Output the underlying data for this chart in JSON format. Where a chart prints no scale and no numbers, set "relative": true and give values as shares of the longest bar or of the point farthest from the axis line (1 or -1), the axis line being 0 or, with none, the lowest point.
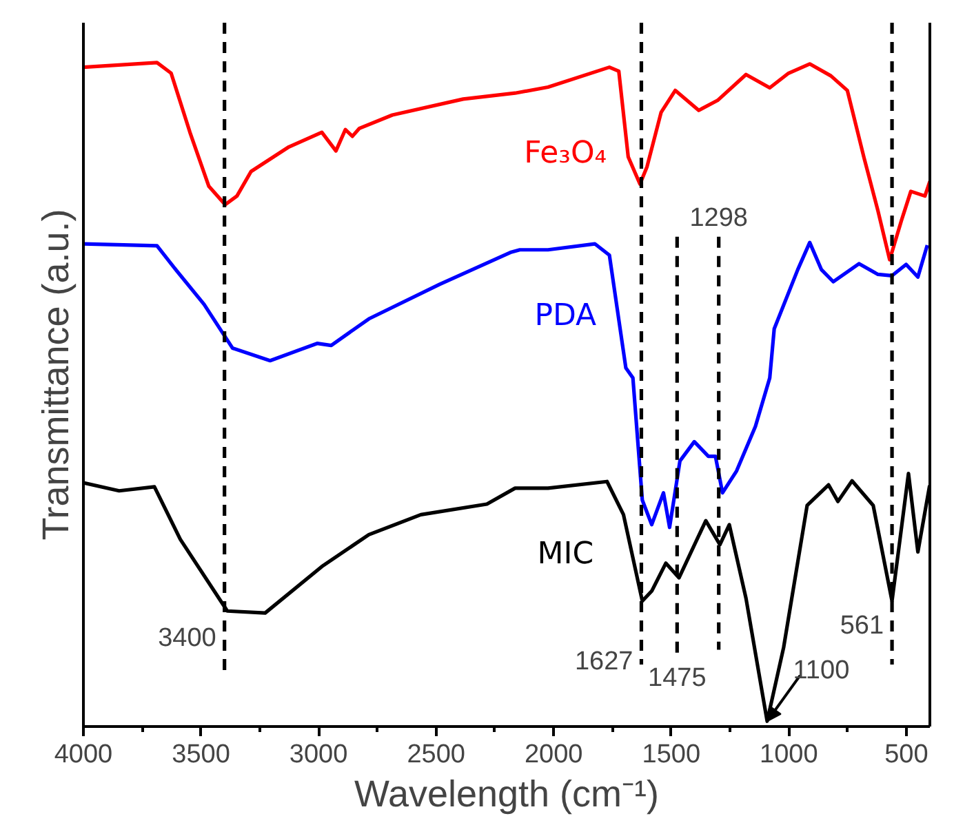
{
  "chart_data": {
    "type": "line",
    "relative": true,
    "xlabel": "Wavelength (cm⁻¹)",
    "ylabel": "Transmittance (a.u.)",
    "xlim": [
      4000,
      400
    ],
    "xticks": [
      4000,
      3500,
      3000,
      2500,
      2000,
      1500,
      1000,
      500
    ],
    "grid": false,
    "line_style": "solid",
    "marker": "none",
    "series": [
      {
        "name": "Fe₃O₄",
        "color": "#ff0000",
        "x": [
          4000,
          3687,
          3627,
          3547,
          3467,
          3397,
          3347,
          3287,
          3126,
          2986,
          2926,
          2886,
          2856,
          2826,
          2686,
          2385,
          2164,
          2024,
          1763,
          1723,
          1683,
          1633,
          1603,
          1543,
          1483,
          1383,
          1303,
          1182,
          1081,
          1001,
          911,
          821,
          751,
          681,
          621,
          571,
          521,
          481,
          421,
          400
        ],
        "values": [
          0.993,
          1.0,
          0.984,
          0.895,
          0.814,
          0.786,
          0.799,
          0.836,
          0.873,
          0.895,
          0.867,
          0.899,
          0.889,
          0.901,
          0.921,
          0.945,
          0.954,
          0.963,
          0.993,
          0.987,
          0.858,
          0.817,
          0.843,
          0.925,
          0.958,
          0.928,
          0.943,
          0.982,
          0.962,
          0.984,
          0.998,
          0.98,
          0.958,
          0.858,
          0.777,
          0.703,
          0.762,
          0.806,
          0.799,
          0.821
        ]
      },
      {
        "name": "PDA",
        "color": "#0000ff",
        "x": [
          4000,
          3687,
          3607,
          3487,
          3366,
          3206,
          3006,
          2946,
          2786,
          2485,
          2184,
          2144,
          2024,
          1825,
          1763,
          1693,
          1663,
          1623,
          1583,
          1533,
          1507,
          1463,
          1402,
          1342,
          1312,
          1282,
          1222,
          1142,
          1081,
          1062,
          962,
          911,
          861,
          811,
          701,
          621,
          561,
          501,
          451,
          411
        ],
        "values": [
          0.727,
          0.724,
          0.688,
          0.636,
          0.57,
          0.551,
          0.577,
          0.574,
          0.614,
          0.666,
          0.714,
          0.718,
          0.718,
          0.727,
          0.71,
          0.54,
          0.525,
          0.341,
          0.304,
          0.352,
          0.3,
          0.4,
          0.429,
          0.407,
          0.407,
          0.352,
          0.385,
          0.452,
          0.525,
          0.599,
          0.688,
          0.729,
          0.688,
          0.67,
          0.697,
          0.681,
          0.679,
          0.696,
          0.677,
          0.725
        ]
      },
      {
        "name": "MIC",
        "color": "#000000",
        "x": [
          4000,
          3848,
          3698,
          3588,
          3388,
          3227,
          2986,
          2786,
          2565,
          2284,
          2164,
          2144,
          2024,
          1773,
          1703,
          1623,
          1583,
          1523,
          1467,
          1353,
          1293,
          1253,
          1182,
          1092,
          1022,
          922,
          831,
          791,
          731,
          641,
          561,
          491,
          451,
          401
        ],
        "values": [
          0.367,
          0.355,
          0.361,
          0.282,
          0.174,
          0.171,
          0.241,
          0.289,
          0.319,
          0.335,
          0.359,
          0.359,
          0.359,
          0.369,
          0.319,
          0.189,
          0.204,
          0.246,
          0.224,
          0.31,
          0.274,
          0.304,
          0.193,
          0.008,
          0.119,
          0.333,
          0.364,
          0.339,
          0.37,
          0.333,
          0.189,
          0.381,
          0.263,
          0.363
        ]
      }
    ],
    "ref_lines": [
      {
        "axis": "x",
        "value": 3400,
        "label": "3400",
        "color": "#000000",
        "line_style": "dashed"
      },
      {
        "axis": "x",
        "value": 1627,
        "label": "1627",
        "color": "#000000",
        "line_style": "dashed"
      },
      {
        "axis": "x",
        "value": 1475,
        "label": "1475",
        "color": "#000000",
        "line_style": "dashed"
      },
      {
        "axis": "x",
        "value": 1298,
        "label": "1298",
        "color": "#000000",
        "line_style": "dashed"
      },
      {
        "axis": "x",
        "value": 561,
        "label": "561",
        "color": "#000000",
        "line_style": "dashed"
      }
    ],
    "annotations": [
      {
        "text": "1100",
        "x": 1092,
        "y": 0.008
      }
    ]
  }
}
